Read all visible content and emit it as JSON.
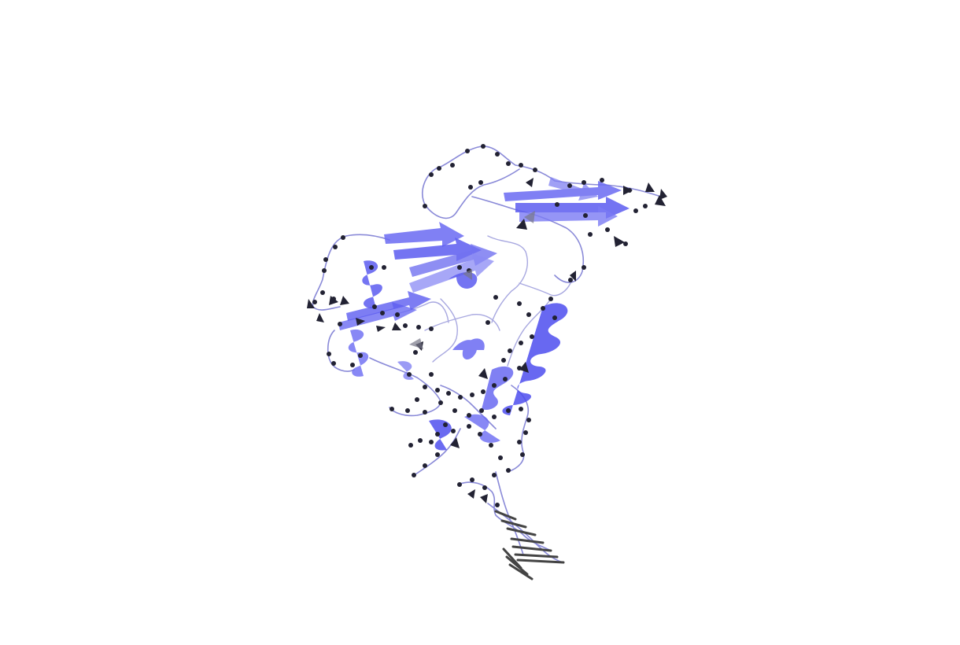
{
  "scene": {
    "type": "protein-cartoon",
    "colors": {
      "background": "#ffffff",
      "ribbon": "#5c5cf0",
      "ribbon_light": "#9a9af0",
      "coil": "#8a8ad8",
      "marker": "#222233",
      "nucleic": "#444444"
    }
  }
}
